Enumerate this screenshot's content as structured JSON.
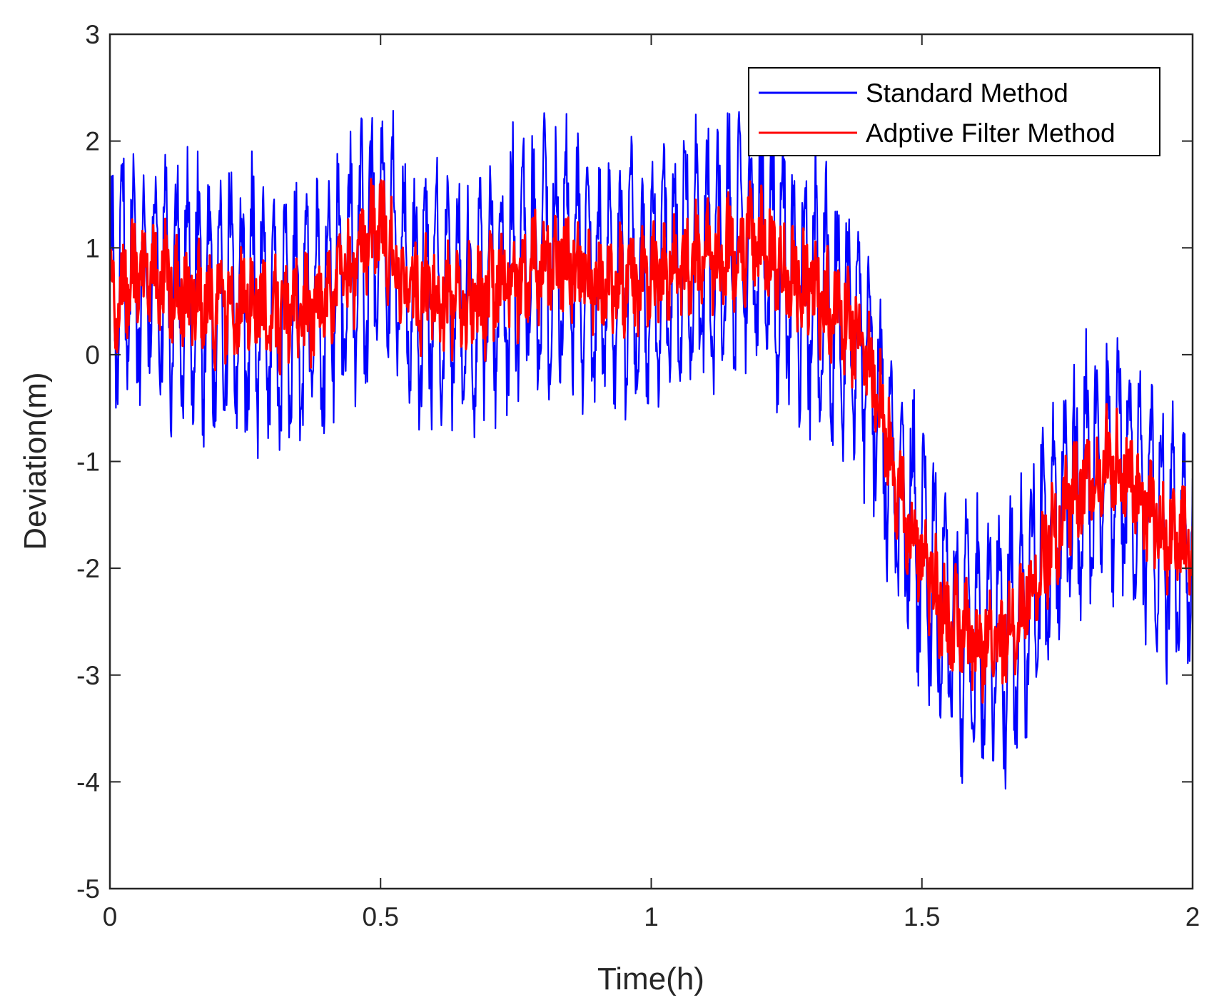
{
  "chart_data": {
    "type": "line",
    "title": "",
    "xlabel": "Time(h)",
    "ylabel": "Deviation(m)",
    "xlim": [
      0,
      2
    ],
    "ylim": [
      -5,
      3
    ],
    "xticks": [
      0,
      0.5,
      1,
      1.5,
      2
    ],
    "xtick_labels": [
      "0",
      "0.5",
      "1",
      "1.5",
      "2"
    ],
    "yticks": [
      3,
      2,
      1,
      0,
      -1,
      -2,
      -3,
      -4,
      -5
    ],
    "ytick_labels": [
      "3",
      "2",
      "1",
      "0",
      "-1",
      "-2",
      "-3",
      "-4",
      "-5"
    ],
    "grid": false,
    "legend_position": "top-right",
    "series": [
      {
        "name": "Standard Method",
        "color": "#0000ff",
        "oscillation_amplitude": 1.3,
        "trend": {
          "x": [
            0,
            0.05,
            0.1,
            0.15,
            0.2,
            0.25,
            0.3,
            0.35,
            0.4,
            0.45,
            0.5,
            0.55,
            0.6,
            0.65,
            0.7,
            0.75,
            0.8,
            0.85,
            0.9,
            0.95,
            1.0,
            1.05,
            1.1,
            1.15,
            1.2,
            1.25,
            1.3,
            1.35,
            1.4,
            1.45,
            1.5,
            1.55,
            1.6,
            1.65,
            1.7,
            1.75,
            1.8,
            1.85,
            1.9,
            1.95,
            2.0
          ],
          "y": [
            0.5,
            0.75,
            0.7,
            0.55,
            0.4,
            0.5,
            0.4,
            0.35,
            0.55,
            0.8,
            1.2,
            0.6,
            0.55,
            0.45,
            0.55,
            0.7,
            0.85,
            0.9,
            0.6,
            0.65,
            0.7,
            0.8,
            0.9,
            1.0,
            1.05,
            0.75,
            0.6,
            0.35,
            0.0,
            -1.1,
            -1.9,
            -2.5,
            -2.7,
            -2.65,
            -2.2,
            -1.6,
            -1.2,
            -0.95,
            -1.3,
            -1.7,
            -1.8
          ]
        }
      },
      {
        "name": "Adptive Filter Method",
        "color": "#ff0000",
        "oscillation_amplitude": 0.45,
        "trend": {
          "x": [
            0,
            0.05,
            0.1,
            0.15,
            0.2,
            0.25,
            0.3,
            0.35,
            0.4,
            0.45,
            0.5,
            0.55,
            0.6,
            0.65,
            0.7,
            0.75,
            0.8,
            0.85,
            0.9,
            0.95,
            1.0,
            1.05,
            1.1,
            1.15,
            1.2,
            1.25,
            1.3,
            1.35,
            1.4,
            1.45,
            1.5,
            1.55,
            1.6,
            1.65,
            1.7,
            1.75,
            1.8,
            1.85,
            1.9,
            1.95,
            2.0
          ],
          "y": [
            0.5,
            0.75,
            0.7,
            0.55,
            0.4,
            0.5,
            0.4,
            0.35,
            0.55,
            0.8,
            1.2,
            0.6,
            0.55,
            0.45,
            0.55,
            0.7,
            0.85,
            0.9,
            0.6,
            0.65,
            0.7,
            0.8,
            0.9,
            1.0,
            1.05,
            0.75,
            0.6,
            0.35,
            0.0,
            -1.1,
            -1.9,
            -2.5,
            -2.7,
            -2.65,
            -2.2,
            -1.6,
            -1.2,
            -0.95,
            -1.3,
            -1.7,
            -1.8
          ]
        }
      }
    ]
  }
}
